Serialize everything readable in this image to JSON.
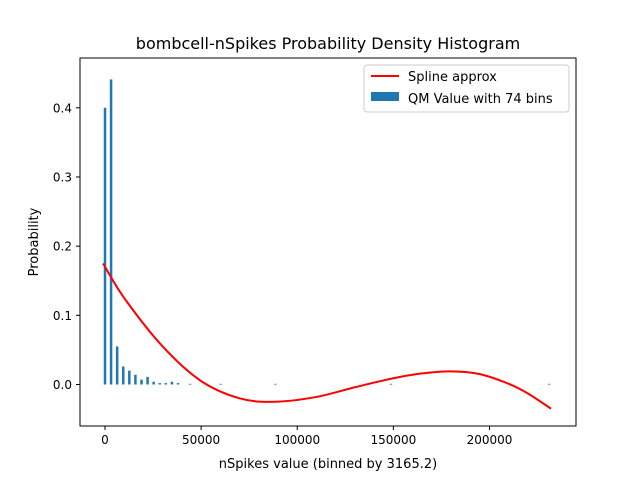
{
  "chart_data": {
    "type": "bar",
    "title": "bombcell-nSpikes Probability Density Histogram",
    "xlabel": "nSpikes value (binned by 3165.2)",
    "ylabel": "Probability",
    "xlim": [
      -13000,
      245000
    ],
    "ylim": [
      -0.06,
      0.472
    ],
    "xticks": [
      {
        "value": 0,
        "label": "0"
      },
      {
        "value": 50000,
        "label": "50000"
      },
      {
        "value": 100000,
        "label": "100000"
      },
      {
        "value": 150000,
        "label": "150000"
      },
      {
        "value": 200000,
        "label": "200000"
      }
    ],
    "yticks": [
      {
        "value": 0.0,
        "label": "0.0"
      },
      {
        "value": 0.1,
        "label": "0.1"
      },
      {
        "value": 0.2,
        "label": "0.2"
      },
      {
        "value": 0.3,
        "label": "0.3"
      },
      {
        "value": 0.4,
        "label": "0.4"
      }
    ],
    "legend": {
      "placement": "top-right"
    },
    "series": [
      {
        "name": "QM Value with 74 bins",
        "kind": "bar",
        "color": "#1f77b4",
        "bin_width": 3165.2,
        "bar_width": 1300,
        "x": [
          0,
          3165,
          6330,
          9496,
          12661,
          15826,
          18991,
          22156,
          25322,
          28487,
          31652,
          34817,
          37982,
          44313,
          60139,
          88626,
          148764,
          231060
        ],
        "values": [
          0.4,
          0.441,
          0.055,
          0.026,
          0.02,
          0.014,
          0.007,
          0.011,
          0.004,
          0.002,
          0.002,
          0.004,
          0.002,
          0.001,
          0.001,
          0.001,
          0.001,
          0.001
        ]
      },
      {
        "name": "Spline approx",
        "kind": "line",
        "color": "#ff0000",
        "x": [
          -1000,
          10000,
          30000,
          50000,
          70000,
          88000,
          110000,
          130000,
          150000,
          165000,
          180000,
          195000,
          210000,
          220000,
          232000
        ],
        "values": [
          0.175,
          0.125,
          0.055,
          0.005,
          -0.02,
          -0.025,
          -0.018,
          -0.004,
          0.009,
          0.016,
          0.019,
          0.015,
          0.001,
          -0.013,
          -0.035
        ]
      }
    ]
  }
}
